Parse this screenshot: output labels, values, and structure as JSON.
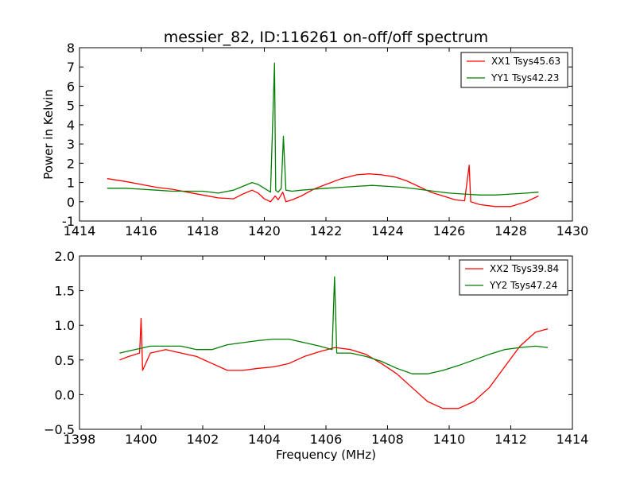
{
  "figure": {
    "title": "messier_82, ID:116261 on-off/off spectrum"
  },
  "colors": {
    "red": "#ff0000",
    "green": "#007f00"
  },
  "chart_data": [
    {
      "type": "line",
      "title": "messier_82, ID:116261 on-off/off spectrum",
      "xlabel": "",
      "ylabel": "Power in Kelvin",
      "xlim": [
        1414,
        1430
      ],
      "ylim": [
        -1,
        8
      ],
      "xticks": [
        1414,
        1416,
        1418,
        1420,
        1422,
        1424,
        1426,
        1428,
        1430
      ],
      "yticks": [
        -1,
        0,
        1,
        2,
        3,
        4,
        5,
        6,
        7,
        8
      ],
      "legend": "top-right",
      "grid": false,
      "series": [
        {
          "name": "XX1 Tsys45.63",
          "color": "#ff0000",
          "x": [
            1414.9,
            1415.5,
            1416.0,
            1416.5,
            1417.0,
            1417.5,
            1418.0,
            1418.5,
            1419.0,
            1419.3,
            1419.6,
            1419.8,
            1420.0,
            1420.2,
            1420.35,
            1420.45,
            1420.6,
            1420.7,
            1420.9,
            1421.2,
            1421.6,
            1422.0,
            1422.5,
            1423.0,
            1423.4,
            1423.8,
            1424.2,
            1424.6,
            1425.0,
            1425.4,
            1425.8,
            1426.2,
            1426.5,
            1426.65,
            1426.7,
            1427.0,
            1427.5,
            1428.0,
            1428.5,
            1428.9
          ],
          "y": [
            1.2,
            1.05,
            0.9,
            0.75,
            0.65,
            0.5,
            0.35,
            0.2,
            0.15,
            0.4,
            0.6,
            0.45,
            0.15,
            0.0,
            0.3,
            0.1,
            0.5,
            0.0,
            0.1,
            0.3,
            0.65,
            0.9,
            1.2,
            1.4,
            1.45,
            1.4,
            1.3,
            1.1,
            0.8,
            0.5,
            0.3,
            0.1,
            0.05,
            1.9,
            0.0,
            -0.15,
            -0.25,
            -0.25,
            0.0,
            0.3
          ]
        },
        {
          "name": "YY1 Tsys42.23",
          "color": "#007f00",
          "x": [
            1414.9,
            1415.5,
            1416.0,
            1416.5,
            1417.0,
            1417.5,
            1418.0,
            1418.5,
            1419.0,
            1419.3,
            1419.6,
            1419.8,
            1420.0,
            1420.2,
            1420.33,
            1420.37,
            1420.45,
            1420.55,
            1420.62,
            1420.7,
            1420.9,
            1421.2,
            1421.6,
            1422.0,
            1422.5,
            1423.0,
            1423.5,
            1424.0,
            1424.5,
            1425.0,
            1425.5,
            1426.0,
            1426.5,
            1427.0,
            1427.5,
            1428.0,
            1428.5,
            1428.9
          ],
          "y": [
            0.7,
            0.7,
            0.65,
            0.6,
            0.55,
            0.55,
            0.55,
            0.45,
            0.6,
            0.8,
            1.0,
            0.9,
            0.7,
            0.5,
            7.2,
            0.6,
            0.5,
            0.7,
            3.4,
            0.6,
            0.55,
            0.6,
            0.65,
            0.7,
            0.75,
            0.8,
            0.85,
            0.8,
            0.75,
            0.65,
            0.55,
            0.45,
            0.4,
            0.35,
            0.35,
            0.4,
            0.45,
            0.5
          ]
        }
      ]
    },
    {
      "type": "line",
      "title": "",
      "xlabel": "Frequency (MHz)",
      "ylabel": "",
      "xlim": [
        1398,
        1414
      ],
      "ylim": [
        -0.5,
        2.0
      ],
      "xticks": [
        1398,
        1400,
        1402,
        1404,
        1406,
        1408,
        1410,
        1412,
        1414
      ],
      "yticks": [
        -0.5,
        0.0,
        0.5,
        1.0,
        1.5,
        2.0
      ],
      "legend": "top-right",
      "grid": false,
      "series": [
        {
          "name": "XX2 Tsys39.84",
          "color": "#ff0000",
          "x": [
            1399.3,
            1399.6,
            1399.95,
            1400.0,
            1400.05,
            1400.3,
            1400.8,
            1401.3,
            1401.8,
            1402.3,
            1402.8,
            1403.3,
            1403.8,
            1404.3,
            1404.8,
            1405.3,
            1405.8,
            1406.3,
            1406.8,
            1407.3,
            1407.8,
            1408.3,
            1408.8,
            1409.3,
            1409.8,
            1410.3,
            1410.8,
            1411.3,
            1411.8,
            1412.3,
            1412.8,
            1413.2
          ],
          "y": [
            0.5,
            0.55,
            0.6,
            1.1,
            0.35,
            0.6,
            0.65,
            0.6,
            0.55,
            0.45,
            0.35,
            0.35,
            0.38,
            0.4,
            0.45,
            0.55,
            0.62,
            0.68,
            0.65,
            0.58,
            0.45,
            0.3,
            0.1,
            -0.1,
            -0.2,
            -0.2,
            -0.1,
            0.1,
            0.4,
            0.7,
            0.9,
            0.95
          ]
        },
        {
          "name": "YY2 Tsys47.24",
          "color": "#007f00",
          "x": [
            1399.3,
            1399.8,
            1400.3,
            1400.8,
            1401.3,
            1401.8,
            1402.3,
            1402.8,
            1403.3,
            1403.8,
            1404.3,
            1404.8,
            1405.3,
            1405.8,
            1406.2,
            1406.28,
            1406.35,
            1406.8,
            1407.3,
            1407.8,
            1408.3,
            1408.8,
            1409.3,
            1409.8,
            1410.3,
            1410.8,
            1411.3,
            1411.8,
            1412.3,
            1412.8,
            1413.2
          ],
          "y": [
            0.6,
            0.65,
            0.7,
            0.7,
            0.7,
            0.65,
            0.65,
            0.72,
            0.75,
            0.78,
            0.8,
            0.8,
            0.75,
            0.7,
            0.65,
            1.7,
            0.6,
            0.6,
            0.55,
            0.48,
            0.38,
            0.3,
            0.3,
            0.35,
            0.42,
            0.5,
            0.58,
            0.65,
            0.68,
            0.7,
            0.68
          ]
        }
      ]
    }
  ]
}
